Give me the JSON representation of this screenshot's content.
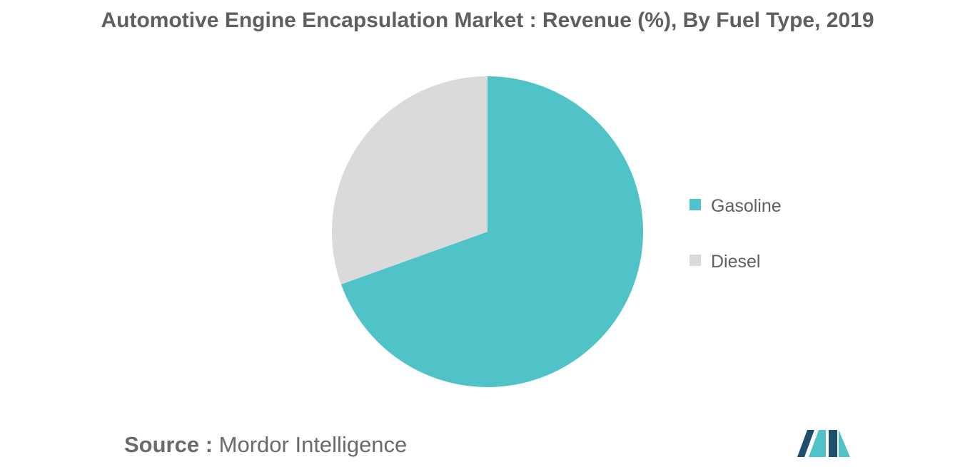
{
  "chart_data": {
    "type": "pie",
    "title": "Automotive Engine Encapsulation Market : Revenue (%), By Fuel Type, 2019",
    "slices": [
      {
        "label": "Gasoline",
        "value": 69.5,
        "color": "#50c3c8"
      },
      {
        "label": "Diesel",
        "value": 30.5,
        "color": "#dadada"
      }
    ],
    "legend_position": "right"
  },
  "footer": {
    "source_key": "Source :",
    "source_value": "Mordor Intelligence"
  },
  "colors": {
    "logo_dark": "#1f4e6e",
    "logo_light": "#50c3c8"
  }
}
